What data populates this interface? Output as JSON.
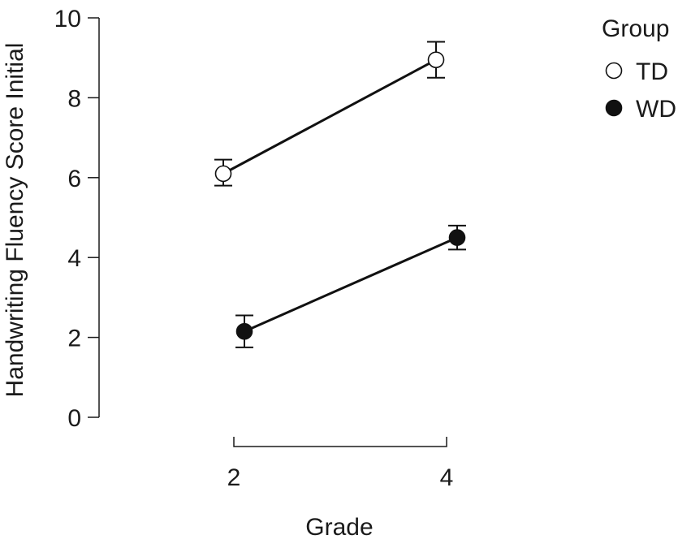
{
  "chart_data": {
    "type": "line",
    "title": "",
    "xlabel": "Grade",
    "ylabel": "Handwriting Fluency Score Initial",
    "categories": [
      "2",
      "4"
    ],
    "x_ticks": [
      "2",
      "4"
    ],
    "ylim": [
      0,
      10
    ],
    "y_ticks": [
      "0",
      "2",
      "4",
      "6",
      "8",
      "10"
    ],
    "grid": false,
    "legend": {
      "title": "Group",
      "position": "top-right"
    },
    "series": [
      {
        "name": "TD",
        "marker": "open-circle",
        "color": "#ffffff",
        "values": [
          6.1,
          8.95
        ],
        "error_low": [
          5.8,
          8.5
        ],
        "error_high": [
          6.45,
          9.4
        ]
      },
      {
        "name": "WD",
        "marker": "filled-circle",
        "color": "#111111",
        "values": [
          2.15,
          4.5
        ],
        "error_low": [
          1.75,
          4.2
        ],
        "error_high": [
          2.55,
          4.8
        ]
      }
    ]
  }
}
